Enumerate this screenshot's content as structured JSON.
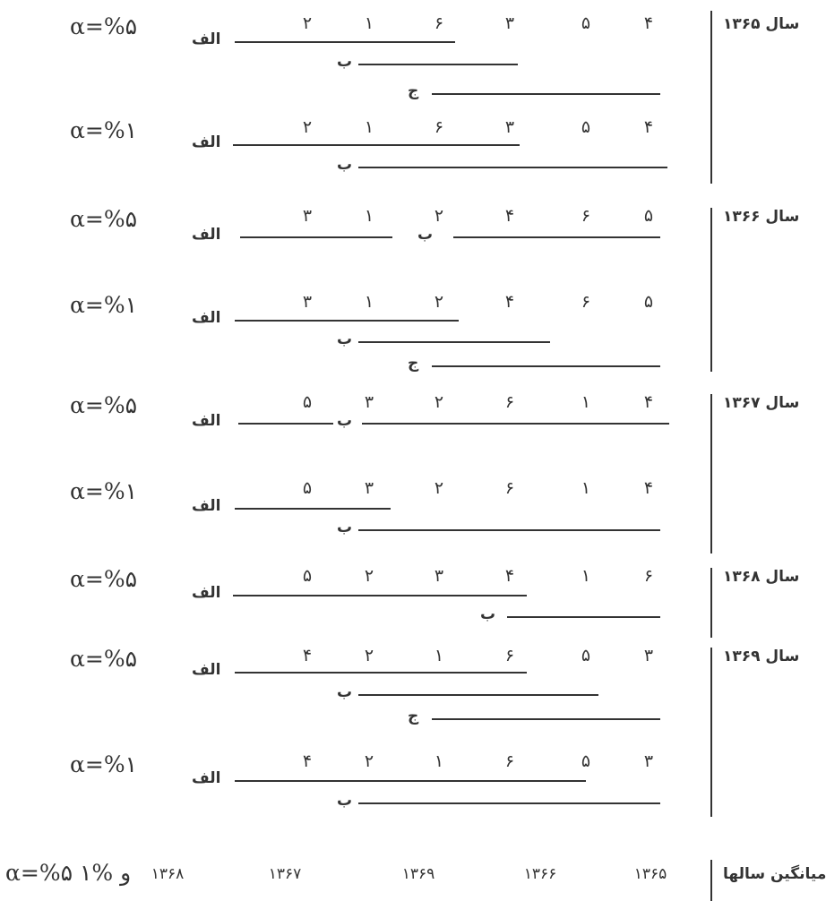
{
  "alpha": {
    "five": "α=%۵",
    "one": "α=%۱",
    "footer": "α=%۵ و %۱"
  },
  "years": {
    "y1365": "سال ۱۳۶۵",
    "y1366": "سال ۱۳۶۶",
    "y1367": "سال ۱۳۶۷",
    "y1368": "سال ۱۳۶۸",
    "y1369": "سال ۱۳۶۹"
  },
  "groups": {
    "a": "الف",
    "b": "ب",
    "c": "ج"
  },
  "blocks": [
    {
      "ranks": [
        "۴",
        "۵",
        "۳",
        "۶",
        "۱",
        "۲"
      ]
    },
    {
      "ranks": [
        "۴",
        "۵",
        "۳",
        "۶",
        "۱",
        "۲"
      ]
    },
    {
      "ranks": [
        "۵",
        "۶",
        "۴",
        "۲",
        "۱",
        "۳"
      ]
    },
    {
      "ranks": [
        "۵",
        "۶",
        "۴",
        "۲",
        "۱",
        "۳"
      ]
    },
    {
      "ranks": [
        "۴",
        "۱",
        "۶",
        "۲",
        "۳",
        "۵"
      ]
    },
    {
      "ranks": [
        "۴",
        "۱",
        "۶",
        "۲",
        "۳",
        "۵"
      ]
    },
    {
      "ranks": [
        "۶",
        "۱",
        "۴",
        "۳",
        "۲",
        "۵"
      ]
    },
    {
      "ranks": [
        "۳",
        "۵",
        "۶",
        "۱",
        "۲",
        "۴"
      ]
    },
    {
      "ranks": [
        "۳",
        "۵",
        "۶",
        "۱",
        "۲",
        "۴"
      ]
    }
  ],
  "footer": {
    "label": "میانگین سالها",
    "years": [
      "۱۳۶۵",
      "۱۳۶۶",
      "۱۳۶۹",
      "۱۳۶۷",
      "۱۳۶۸"
    ]
  }
}
